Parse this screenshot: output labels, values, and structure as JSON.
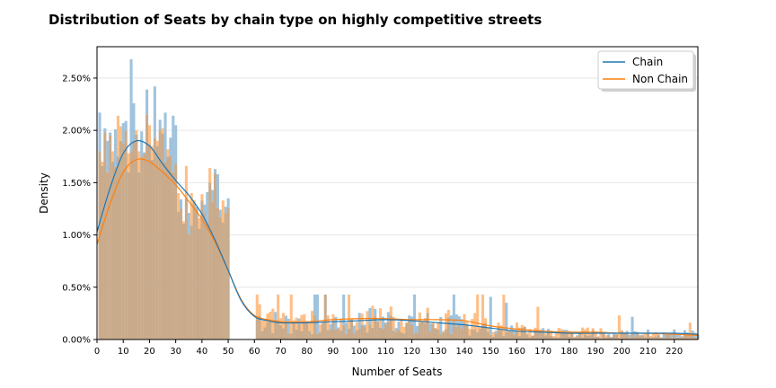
{
  "chart_data": {
    "type": "bar",
    "title": "Distribution of Seats by chain type on highly competitive streets",
    "xlabel": "Number of Seats",
    "ylabel": "Density",
    "xlim": [
      0,
      229
    ],
    "ylim": [
      0,
      0.028
    ],
    "x_ticks": [
      0,
      10,
      20,
      30,
      40,
      50,
      60,
      70,
      80,
      90,
      100,
      110,
      120,
      130,
      140,
      150,
      160,
      170,
      180,
      190,
      200,
      210,
      220
    ],
    "y_ticks": [
      0,
      0.005,
      0.01,
      0.015,
      0.02,
      0.025
    ],
    "y_tick_labels": [
      "0.00%",
      "0.50%",
      "1.00%",
      "1.50%",
      "2.00%",
      "2.50%"
    ],
    "grid": "horizontal",
    "legend": "top-right",
    "colors": {
      "chain": "#1f77b4",
      "non_chain": "#ff7f0e",
      "overlap": "#c9ab8c"
    },
    "series": [
      {
        "name": "Chain",
        "kind": "histogram",
        "bins": [
          {
            "range": [
              1,
              30
            ],
            "values": [
              0.0217,
              0.0166,
              0.0202,
              0.019,
              0.0198,
              0.017,
              0.0201,
              0.0175,
              0.019,
              0.0207,
              0.0209,
              0.016,
              0.0268,
              0.0226,
              0.0196,
              0.016,
              0.0199,
              0.0179,
              0.0239,
              0.0187,
              0.0172,
              0.0242,
              0.0185,
              0.021,
              0.0197,
              0.0217,
              0.0175,
              0.0193,
              0.0214,
              0.0205
            ]
          },
          {
            "range": [
              31,
              50
            ],
            "values": [
              0.0122,
              0.0134,
              0.0111,
              0.0135,
              0.0121,
              0.0109,
              0.0131,
              0.0127,
              0.0106,
              0.0133,
              0.0129,
              0.0141,
              0.015,
              0.0143,
              0.0163,
              0.0158,
              0.0124,
              0.0112,
              0.0127,
              0.0135
            ]
          },
          {
            "range": [
              61,
              229
            ],
            "values": "low-density bins between 0.0002 and 0.0041"
          }
        ],
        "kde": [
          [
            0,
            0.0103
          ],
          [
            5,
            0.0145
          ],
          [
            10,
            0.0178
          ],
          [
            15,
            0.019
          ],
          [
            20,
            0.0185
          ],
          [
            25,
            0.0168
          ],
          [
            30,
            0.0152
          ],
          [
            35,
            0.0138
          ],
          [
            40,
            0.012
          ],
          [
            45,
            0.0095
          ],
          [
            50,
            0.0066
          ],
          [
            55,
            0.0037
          ],
          [
            60,
            0.0022
          ],
          [
            65,
            0.0018
          ],
          [
            70,
            0.0016
          ],
          [
            80,
            0.0016
          ],
          [
            90,
            0.0017
          ],
          [
            100,
            0.0018
          ],
          [
            110,
            0.0019
          ],
          [
            120,
            0.0018
          ],
          [
            130,
            0.0016
          ],
          [
            140,
            0.0014
          ],
          [
            150,
            0.0011
          ],
          [
            160,
            0.0008
          ],
          [
            170,
            0.0007
          ],
          [
            180,
            0.0006
          ],
          [
            190,
            0.0006
          ],
          [
            200,
            0.0006
          ],
          [
            210,
            0.0006
          ],
          [
            220,
            0.0006
          ],
          [
            229,
            0.0005
          ]
        ]
      },
      {
        "name": "Non Chain",
        "kind": "histogram",
        "bins": [
          {
            "range": [
              1,
              30
            ],
            "values": [
              0.018,
              0.017,
              0.0198,
              0.016,
              0.0195,
              0.018,
              0.0165,
              0.0214,
              0.0204,
              0.0188,
              0.02,
              0.0178,
              0.018,
              0.019,
              0.02,
              0.018,
              0.0175,
              0.0178,
              0.0215,
              0.0205,
              0.0185,
              0.0193,
              0.019,
              0.02,
              0.0202,
              0.017,
              0.0182,
              0.0176,
              0.016,
              0.0168
            ]
          },
          {
            "range": [
              31,
              50
            ],
            "values": [
              0.014,
              0.0125,
              0.0113,
              0.0166,
              0.0101,
              0.014,
              0.0133,
              0.0125,
              0.0116,
              0.0139,
              0.0121,
              0.0112,
              0.0164,
              0.0132,
              0.0159,
              0.0126,
              0.0117,
              0.0133,
              0.0121,
              0.0126
            ]
          },
          {
            "range": [
              61,
              229
            ],
            "values": "low-density bins between 0.0002 and 0.0043"
          }
        ],
        "kde": [
          [
            0,
            0.0091
          ],
          [
            5,
            0.013
          ],
          [
            10,
            0.016
          ],
          [
            15,
            0.0172
          ],
          [
            20,
            0.017
          ],
          [
            25,
            0.016
          ],
          [
            30,
            0.0148
          ],
          [
            35,
            0.0132
          ],
          [
            40,
            0.0115
          ],
          [
            45,
            0.0093
          ],
          [
            50,
            0.0066
          ],
          [
            55,
            0.0038
          ],
          [
            60,
            0.0023
          ],
          [
            65,
            0.0019
          ],
          [
            70,
            0.0017
          ],
          [
            80,
            0.0017
          ],
          [
            90,
            0.0019
          ],
          [
            100,
            0.002
          ],
          [
            110,
            0.002
          ],
          [
            120,
            0.0019
          ],
          [
            130,
            0.0019
          ],
          [
            140,
            0.0018
          ],
          [
            150,
            0.0013
          ],
          [
            160,
            0.001
          ],
          [
            170,
            0.0008
          ],
          [
            180,
            0.0007
          ],
          [
            190,
            0.0007
          ],
          [
            200,
            0.0006
          ],
          [
            210,
            0.0006
          ],
          [
            220,
            0.0005
          ],
          [
            229,
            0.0004
          ]
        ]
      }
    ]
  }
}
